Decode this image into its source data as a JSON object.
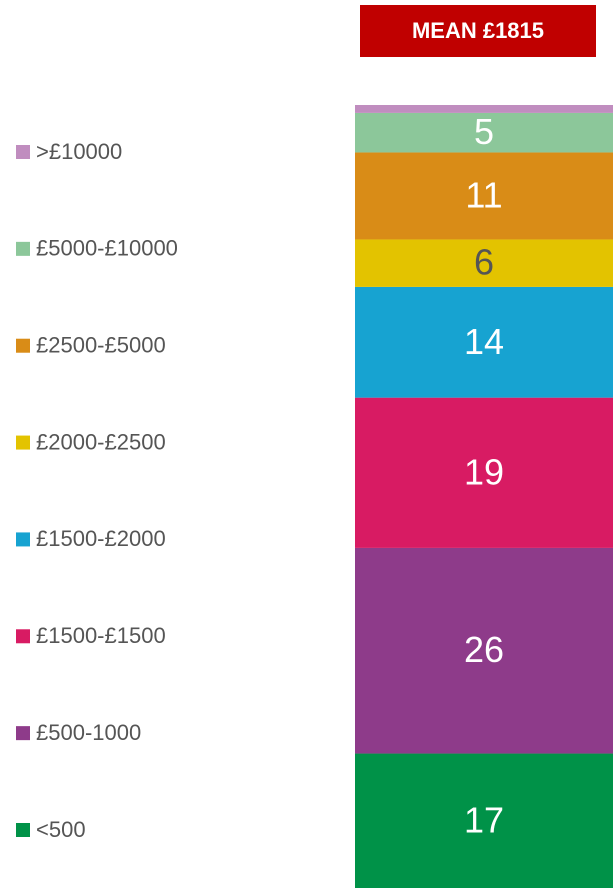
{
  "chart_data": {
    "type": "stacked-bar",
    "title": "MEAN £1815",
    "title_color": "#c00000",
    "ylim": [
      0,
      99
    ],
    "series": [
      {
        "name": "<500",
        "color": "#009248",
        "label_color": "#ffffff",
        "values": [
          17
        ]
      },
      {
        "name": "£500-1000",
        "color": "#8e3b8a",
        "label_color": "#ffffff",
        "values": [
          26
        ]
      },
      {
        "name": "£1500-£1500",
        "color": "#d81b63",
        "label_color": "#ffffff",
        "values": [
          19
        ]
      },
      {
        "name": "£1500-£2000",
        "color": "#17a3d1",
        "label_color": "#ffffff",
        "values": [
          14
        ]
      },
      {
        "name": "£2000-£2500",
        "color": "#e3c300",
        "label_color": "#555555",
        "values": [
          6
        ]
      },
      {
        "name": "£2500-£5000",
        "color": "#d98c17",
        "label_color": "#ffffff",
        "values": [
          11
        ]
      },
      {
        "name": "£5000-£10000",
        "color": "#8cc79a",
        "label_color": "#ffffff",
        "values": [
          5
        ]
      },
      {
        "name": ">£10000",
        "color": "#c08dbf",
        "label_color": "#ffffff",
        "values": [
          1
        ]
      }
    ]
  }
}
